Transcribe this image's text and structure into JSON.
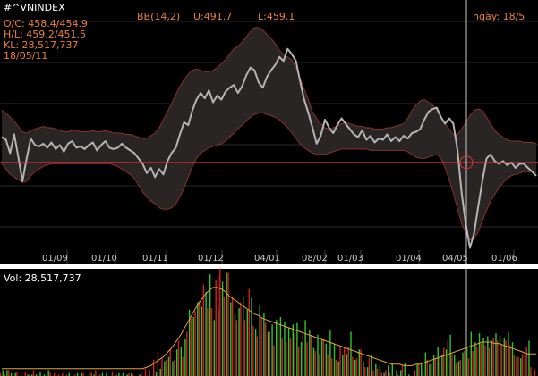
{
  "header": {
    "symbol": "#^VNINDEX",
    "oc": "O/C: 458.4/454.9",
    "hl": "H/L: 459.2/451.5",
    "kl": "KL: 28,517,737",
    "date": "18/05/11",
    "bb_label": "BB(14,2)",
    "bb_upper": "U:491.7",
    "bb_lower": "L:459.1",
    "date_label": "ngày: 18/5"
  },
  "volume_panel": {
    "label": "Vol: 28,517,737"
  },
  "colors": {
    "price_line": "#b4b4b4",
    "band_fill": "#2a2525",
    "band_edge": "#8a2f2a",
    "crosshair_h": "#e0303a",
    "crosshair_v": "#c8c8c8",
    "vol_up": "#2fc42f",
    "vol_down": "#d02020",
    "vol_ma": "#e8a030",
    "grid": "#2a2a2a"
  },
  "chart_data": [
    {
      "type": "line",
      "name": "price",
      "title": "",
      "x_ticks": [
        "01/09",
        "01/10",
        "01/11",
        "01/12",
        "04/01",
        "08/02",
        "01/03",
        "01/04",
        "04/05",
        "01/06"
      ],
      "series": [
        {
          "name": "",
          "values": [
            490,
            488,
            478,
            492,
            475,
            457,
            474,
            489,
            484,
            483,
            485,
            482,
            486,
            481,
            484,
            479,
            485,
            487,
            482,
            483,
            481,
            484,
            486,
            480,
            484,
            487,
            482,
            481,
            482,
            485,
            482,
            480,
            478,
            474,
            470,
            463,
            467,
            460,
            466,
            462,
            472,
            478,
            482,
            492,
            501,
            499,
            510,
            518,
            523,
            519,
            525,
            516,
            521,
            518,
            524,
            527,
            529,
            523,
            528,
            536,
            542,
            540,
            531,
            527,
            535,
            540,
            544,
            550,
            547,
            556,
            552,
            547,
            532,
            518,
            508,
            497,
            485,
            491,
            503,
            497,
            493,
            499,
            504,
            500,
            496,
            492,
            490,
            495,
            488,
            491,
            486,
            489,
            488,
            492,
            487,
            490,
            487,
            491,
            489,
            493,
            494,
            496,
            503,
            509,
            511,
            512,
            505,
            500,
            504,
            500,
            480,
            448,
            425,
            407,
            418,
            438,
            457,
            474,
            477,
            472,
            470,
            472,
            469,
            471,
            467,
            470,
            470,
            467,
            464,
            461
          ]
        },
        {
          "name": "",
          "values": [
            510,
            508,
            505,
            502,
            498,
            494,
            493,
            495,
            496,
            497,
            498,
            497,
            497,
            496,
            495,
            494,
            494,
            495,
            495,
            494,
            494,
            494,
            495,
            494,
            494,
            495,
            494,
            493,
            493,
            493,
            492,
            492,
            491,
            490,
            489,
            489,
            491,
            493,
            497,
            503,
            509,
            515,
            522,
            528,
            533,
            537,
            540,
            541,
            540,
            539,
            539,
            540,
            542,
            545,
            548,
            552,
            556,
            558,
            561,
            565,
            569,
            572,
            572,
            570,
            567,
            564,
            560,
            555,
            552,
            550,
            548,
            542,
            534,
            526,
            518,
            509,
            504,
            500,
            497,
            496,
            497,
            498,
            500,
            501,
            500,
            499,
            498,
            498,
            497,
            497,
            496,
            496,
            496,
            497,
            497,
            498,
            499,
            500,
            504,
            510,
            514,
            517,
            518,
            516,
            514,
            510,
            505,
            500,
            496,
            492,
            492,
            496,
            501,
            506,
            510,
            511,
            510,
            505,
            500,
            495,
            492,
            490,
            488,
            487,
            487,
            487,
            486,
            486,
            486,
            485
          ]
        },
        {
          "name": "",
          "values": [
            470,
            466,
            462,
            460,
            458,
            456,
            457,
            461,
            464,
            466,
            468,
            469,
            470,
            470,
            470,
            470,
            470,
            470,
            470,
            470,
            470,
            470,
            470,
            470,
            470,
            470,
            470,
            469,
            468,
            466,
            464,
            462,
            459,
            454,
            449,
            445,
            442,
            440,
            437,
            436,
            436,
            437,
            440,
            445,
            452,
            460,
            468,
            474,
            478,
            480,
            482,
            483,
            484,
            485,
            487,
            490,
            493,
            496,
            499,
            502,
            505,
            507,
            508,
            508,
            507,
            506,
            505,
            503,
            500,
            497,
            493,
            489,
            485,
            482,
            480,
            478,
            477,
            477,
            477,
            478,
            479,
            480,
            481,
            481,
            481,
            481,
            481,
            481,
            481,
            480,
            480,
            480,
            480,
            480,
            480,
            480,
            480,
            480,
            479,
            477,
            475,
            474,
            474,
            475,
            476,
            477,
            474,
            467,
            458,
            448,
            436,
            425,
            418,
            413,
            414,
            419,
            427,
            435,
            442,
            447,
            452,
            456,
            459,
            461,
            462,
            463,
            464,
            464,
            464,
            463
          ]
        },
        {
          "name": "",
          "values": [
            14,
            15,
            17,
            19,
            22,
            24,
            26,
            26,
            24,
            22,
            20,
            18,
            17,
            17,
            18,
            19,
            20,
            19,
            18,
            17,
            17,
            18,
            19,
            20,
            20,
            19,
            18,
            18,
            19,
            20,
            20,
            19,
            18,
            17,
            18,
            19,
            21,
            23,
            25,
            25,
            25,
            24,
            24,
            25,
            27,
            30,
            34,
            40,
            47,
            52,
            55,
            58,
            57,
            53,
            48,
            44,
            41,
            38,
            35,
            33,
            32,
            31,
            31,
            32,
            32,
            31,
            29,
            27,
            25,
            23,
            22,
            21,
            21,
            20,
            19,
            18,
            17,
            17,
            17,
            17,
            17,
            16,
            15,
            15,
            15,
            15,
            15,
            15,
            15,
            15,
            15,
            15,
            15,
            15,
            15,
            15,
            15,
            16,
            16,
            16,
            16,
            16,
            16,
            15,
            15,
            15,
            15,
            16,
            17,
            18,
            19,
            19,
            18,
            17,
            16,
            15,
            15,
            14,
            14,
            14,
            14,
            14,
            15,
            16,
            17,
            18,
            19,
            19,
            19,
            18
          ]
        }
      ],
      "crosshair": {
        "date": "18/5",
        "value": 471
      }
    },
    {
      "type": "bar",
      "name": "volume",
      "values_up": [
        4,
        4,
        2,
        2,
        0,
        0,
        1,
        1,
        1,
        3,
        1,
        4,
        0,
        0,
        0,
        0,
        2,
        0,
        2,
        2,
        0,
        2,
        1,
        0,
        2,
        2,
        0,
        0,
        2,
        2,
        1,
        2,
        0,
        1,
        0,
        0,
        0,
        3,
        5,
        10,
        13,
        10,
        18,
        20,
        25,
        45,
        40,
        50,
        47,
        57,
        69,
        38,
        45,
        64,
        70,
        50,
        42,
        46,
        54,
        45,
        53,
        32,
        48,
        43,
        30,
        35,
        38,
        40,
        37,
        33,
        35,
        36,
        23,
        38,
        31,
        19,
        28,
        25,
        22,
        31,
        22,
        10,
        14,
        15,
        30,
        11,
        18,
        10,
        6,
        14,
        8,
        7,
        2,
        7,
        9,
        4,
        4,
        9,
        1,
        0,
        8,
        9,
        16,
        8,
        14,
        20,
        14,
        18,
        28,
        14,
        10,
        16,
        20,
        30,
        23,
        29,
        26,
        27,
        24,
        29,
        27,
        26,
        30,
        23,
        13,
        12,
        14,
        24,
        0,
        0
      ],
      "values_down": [
        2,
        1,
        4,
        0,
        3,
        2,
        3,
        1,
        4,
        1,
        0,
        0,
        3,
        2,
        1,
        2,
        1,
        0,
        1,
        0,
        2,
        0,
        2,
        4,
        1,
        0,
        0,
        3,
        1,
        0,
        0,
        2,
        1,
        0,
        3,
        5,
        4,
        11,
        16,
        12,
        11,
        18,
        11,
        24,
        13,
        30,
        39,
        44,
        51,
        62,
        46,
        46,
        65,
        73,
        54,
        70,
        54,
        38,
        50,
        38,
        59,
        34,
        27,
        40,
        36,
        30,
        21,
        35,
        26,
        23,
        26,
        29,
        20,
        28,
        23,
        28,
        17,
        15,
        25,
        15,
        12,
        11,
        20,
        20,
        20,
        13,
        12,
        18,
        6,
        12,
        4,
        5,
        2,
        4,
        2,
        0,
        1,
        7,
        0,
        0,
        4,
        8,
        3,
        11,
        8,
        12,
        13,
        19,
        24,
        15,
        9,
        11,
        17,
        12,
        17,
        20,
        22,
        21,
        19,
        26,
        24,
        21,
        24,
        21,
        14,
        13,
        15,
        20,
        6,
        4
      ],
      "ma": [
        2,
        2,
        2,
        2,
        2,
        2,
        2,
        2,
        2,
        2,
        2,
        2,
        2,
        2,
        2,
        2,
        2,
        2,
        2,
        2,
        2,
        2,
        2,
        2,
        2,
        2,
        2,
        2,
        2,
        2,
        2,
        2,
        2,
        2,
        2,
        3,
        4,
        6,
        8,
        10,
        13,
        16,
        20,
        24,
        29,
        34,
        39,
        44,
        48,
        52,
        55,
        57,
        57,
        56,
        54,
        51,
        49,
        47,
        45,
        43,
        41,
        39,
        38,
        36,
        35,
        34,
        33,
        32,
        31,
        30,
        29,
        28,
        27,
        26,
        25,
        24,
        23,
        22,
        21,
        20,
        19,
        18,
        17,
        16,
        15,
        14,
        13,
        12,
        11,
        10,
        9,
        8,
        7,
        6,
        5,
        5,
        5,
        4,
        4,
        4,
        5,
        5,
        6,
        7,
        8,
        9,
        10,
        11,
        12,
        13,
        14,
        15,
        16,
        17,
        18,
        19,
        20,
        20,
        20,
        19,
        19,
        18,
        17,
        16,
        15,
        14,
        13,
        12,
        12,
        12
      ]
    }
  ]
}
